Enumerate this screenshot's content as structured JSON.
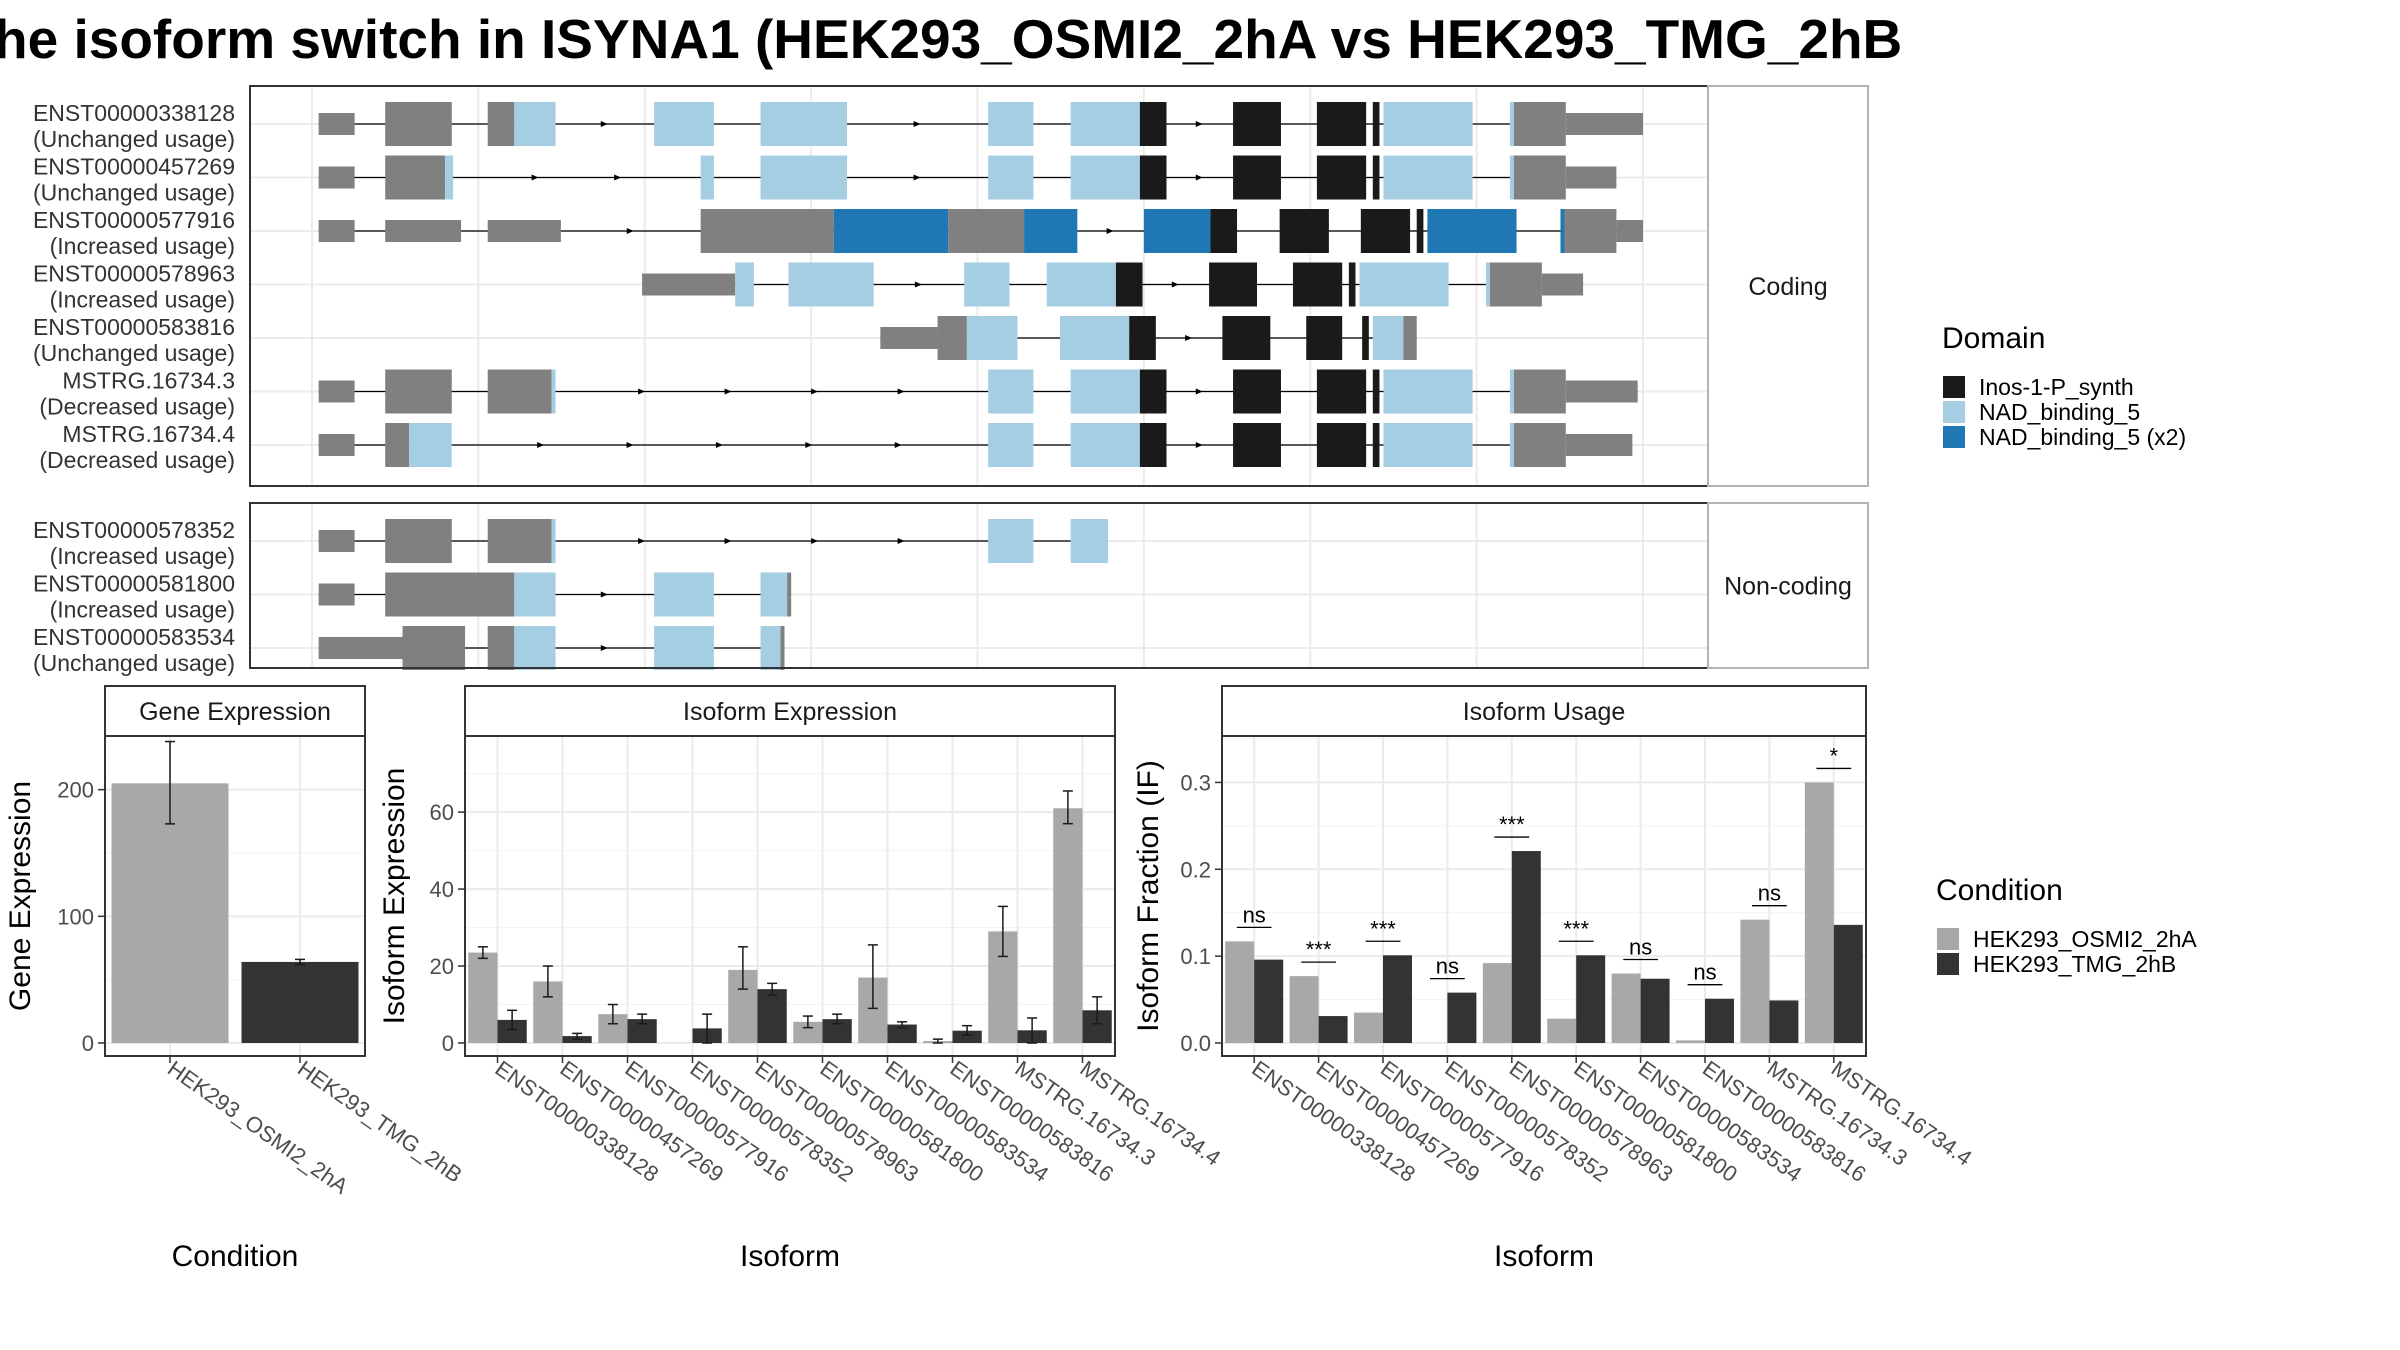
{
  "title": "he isoform switch in ISYNA1 (HEK293_OSMI2_2hA vs HEK293_TMG_2hB",
  "colors": {
    "exon": "#808080",
    "inos": "#1a1a1a",
    "nad": "#a6cee3",
    "nad2": "#1f78b4",
    "cond1": "#a8a8a8",
    "cond2": "#333333",
    "grid": "#ebebeb",
    "border": "#333333",
    "strip": "#ffffff"
  },
  "structure": {
    "sections": [
      {
        "label": "Coding",
        "transcripts": [
          {
            "id": "ENST00000338128",
            "usage": "(Unchanged usage)",
            "coding": true,
            "start": 0.005,
            "end": 1.0,
            "segs": [
              [
                0.005,
                0.032,
                "u"
              ],
              [
                0.055,
                0.105,
                "c"
              ],
              [
                0.132,
                0.152,
                "c"
              ],
              [
                0.152,
                0.183,
                "n"
              ],
              [
                0.257,
                0.302,
                "n"
              ],
              [
                0.337,
                0.402,
                "n"
              ],
              [
                0.508,
                0.542,
                "n"
              ],
              [
                0.57,
                0.622,
                "n"
              ],
              [
                0.622,
                0.642,
                "i"
              ],
              [
                0.692,
                0.728,
                "i"
              ],
              [
                0.755,
                0.792,
                "i"
              ],
              [
                0.797,
                0.802,
                "i"
              ],
              [
                0.805,
                0.872,
                "n"
              ],
              [
                0.9,
                0.903,
                "n"
              ],
              [
                0.903,
                0.942,
                "c"
              ],
              [
                0.942,
                1.0,
                "u"
              ]
            ]
          },
          {
            "id": "ENST00000457269",
            "usage": "(Unchanged usage)",
            "coding": true,
            "start": 0.005,
            "end": 0.915,
            "segs": [
              [
                0.005,
                0.032,
                "u"
              ],
              [
                0.055,
                0.1,
                "c"
              ],
              [
                0.1,
                0.106,
                "n"
              ],
              [
                0.292,
                0.302,
                "n"
              ],
              [
                0.337,
                0.402,
                "n"
              ],
              [
                0.508,
                0.542,
                "n"
              ],
              [
                0.57,
                0.622,
                "n"
              ],
              [
                0.622,
                0.642,
                "i"
              ],
              [
                0.692,
                0.728,
                "i"
              ],
              [
                0.755,
                0.792,
                "i"
              ],
              [
                0.797,
                0.802,
                "i"
              ],
              [
                0.805,
                0.872,
                "n"
              ],
              [
                0.9,
                0.903,
                "n"
              ],
              [
                0.903,
                0.942,
                "c"
              ],
              [
                0.942,
                0.98,
                "u"
              ]
            ]
          },
          {
            "id": "ENST00000577916",
            "usage": "(Increased usage)",
            "coding": true,
            "start": 0.005,
            "end": 0.905,
            "segs": [
              [
                0.005,
                0.032,
                "u"
              ],
              [
                0.055,
                0.112,
                "u"
              ],
              [
                0.132,
                0.187,
                "u"
              ],
              [
                0.292,
                0.392,
                "c"
              ],
              [
                0.392,
                0.478,
                "d"
              ],
              [
                0.478,
                0.535,
                "c"
              ],
              [
                0.535,
                0.575,
                "d"
              ],
              [
                0.625,
                0.675,
                "d"
              ],
              [
                0.675,
                0.695,
                "i"
              ],
              [
                0.727,
                0.764,
                "i"
              ],
              [
                0.788,
                0.825,
                "i"
              ],
              [
                0.83,
                0.835,
                "i"
              ],
              [
                0.838,
                0.905,
                "d"
              ],
              [
                0.938,
                0.941,
                "d"
              ],
              [
                0.941,
                0.98,
                "c"
              ],
              [
                0.98,
                1.0,
                "u"
              ]
            ]
          },
          {
            "id": "ENST00000578963",
            "usage": "(Increased usage)",
            "coding": true,
            "start": 0.248,
            "end": 0.92,
            "segs": [
              [
                0.248,
                0.318,
                "u"
              ],
              [
                0.318,
                0.332,
                "n"
              ],
              [
                0.358,
                0.422,
                "n"
              ],
              [
                0.49,
                0.524,
                "n"
              ],
              [
                0.552,
                0.604,
                "n"
              ],
              [
                0.604,
                0.624,
                "i"
              ],
              [
                0.674,
                0.71,
                "i"
              ],
              [
                0.737,
                0.774,
                "i"
              ],
              [
                0.779,
                0.784,
                "i"
              ],
              [
                0.787,
                0.854,
                "n"
              ],
              [
                0.882,
                0.885,
                "n"
              ],
              [
                0.885,
                0.924,
                "c"
              ],
              [
                0.924,
                0.955,
                "u"
              ]
            ]
          },
          {
            "id": "ENST00000583816",
            "usage": "(Unchanged usage)",
            "coding": true,
            "start": 0.427,
            "end": 0.815,
            "segs": [
              [
                0.427,
                0.47,
                "u"
              ],
              [
                0.47,
                0.492,
                "c"
              ],
              [
                0.492,
                0.53,
                "n"
              ],
              [
                0.562,
                0.614,
                "n"
              ],
              [
                0.614,
                0.634,
                "i"
              ],
              [
                0.684,
                0.72,
                "i"
              ],
              [
                0.747,
                0.774,
                "i"
              ],
              [
                0.789,
                0.794,
                "i"
              ],
              [
                0.797,
                0.82,
                "n"
              ],
              [
                0.82,
                0.83,
                "c"
              ]
            ]
          },
          {
            "id": "MSTRG.16734.3",
            "usage": "(Decreased usage)",
            "coding": true,
            "start": 0.005,
            "end": 0.955,
            "segs": [
              [
                0.005,
                0.032,
                "u"
              ],
              [
                0.055,
                0.105,
                "c"
              ],
              [
                0.132,
                0.18,
                "c"
              ],
              [
                0.18,
                0.183,
                "n"
              ],
              [
                0.508,
                0.542,
                "n"
              ],
              [
                0.57,
                0.622,
                "n"
              ],
              [
                0.622,
                0.642,
                "i"
              ],
              [
                0.692,
                0.728,
                "i"
              ],
              [
                0.755,
                0.792,
                "i"
              ],
              [
                0.797,
                0.802,
                "i"
              ],
              [
                0.805,
                0.872,
                "n"
              ],
              [
                0.9,
                0.903,
                "n"
              ],
              [
                0.903,
                0.942,
                "c"
              ],
              [
                0.942,
                0.996,
                "u"
              ]
            ]
          },
          {
            "id": "MSTRG.16734.4",
            "usage": "(Decreased usage)",
            "coding": true,
            "start": 0.005,
            "end": 0.945,
            "segs": [
              [
                0.005,
                0.032,
                "u"
              ],
              [
                0.055,
                0.073,
                "c"
              ],
              [
                0.073,
                0.105,
                "n"
              ],
              [
                0.508,
                0.542,
                "n"
              ],
              [
                0.57,
                0.622,
                "n"
              ],
              [
                0.622,
                0.642,
                "i"
              ],
              [
                0.692,
                0.728,
                "i"
              ],
              [
                0.755,
                0.792,
                "i"
              ],
              [
                0.797,
                0.802,
                "i"
              ],
              [
                0.805,
                0.872,
                "n"
              ],
              [
                0.9,
                0.903,
                "n"
              ],
              [
                0.903,
                0.942,
                "c"
              ],
              [
                0.942,
                0.992,
                "u"
              ]
            ]
          }
        ]
      },
      {
        "label": "Non-coding",
        "transcripts": [
          {
            "id": "ENST00000578352",
            "usage": "(Increased usage)",
            "coding": false,
            "start": 0.005,
            "end": 0.57,
            "segs": [
              [
                0.005,
                0.032,
                "u"
              ],
              [
                0.055,
                0.105,
                "c"
              ],
              [
                0.132,
                0.18,
                "c"
              ],
              [
                0.18,
                0.183,
                "n"
              ],
              [
                0.508,
                0.542,
                "n"
              ],
              [
                0.57,
                0.598,
                "n"
              ]
            ]
          },
          {
            "id": "ENST00000581800",
            "usage": "(Increased usage)",
            "coding": false,
            "start": 0.005,
            "end": 0.38,
            "segs": [
              [
                0.005,
                0.032,
                "u"
              ],
              [
                0.055,
                0.152,
                "c"
              ],
              [
                0.152,
                0.183,
                "n"
              ],
              [
                0.257,
                0.302,
                "n"
              ],
              [
                0.337,
                0.357,
                "n"
              ],
              [
                0.357,
                0.36,
                "c"
              ]
            ]
          },
          {
            "id": "ENST00000583534",
            "usage": "(Unchanged usage)",
            "coding": false,
            "start": 0.005,
            "end": 0.38,
            "segs": [
              [
                0.005,
                0.068,
                "u"
              ],
              [
                0.068,
                0.115,
                "c"
              ],
              [
                0.132,
                0.152,
                "c"
              ],
              [
                0.152,
                0.183,
                "n"
              ],
              [
                0.257,
                0.302,
                "n"
              ],
              [
                0.337,
                0.352,
                "n"
              ],
              [
                0.352,
                0.355,
                "c"
              ]
            ]
          }
        ]
      }
    ]
  },
  "domain_legend": {
    "title": "Domain",
    "items": [
      {
        "label": "Inos-1-P_synth",
        "color": "#1a1a1a"
      },
      {
        "label": "NAD_binding_5",
        "color": "#a6cee3"
      },
      {
        "label": "NAD_binding_5 (x2)",
        "color": "#1f78b4"
      }
    ]
  },
  "condition_legend": {
    "title": "Condition",
    "items": [
      {
        "label": "HEK293_OSMI2_2hA",
        "color": "#a8a8a8"
      },
      {
        "label": "HEK293_TMG_2hB",
        "color": "#333333"
      }
    ]
  },
  "chart_data": [
    {
      "type": "bar",
      "title": "Gene Expression",
      "xlabel": "Condition",
      "ylabel": "Gene Expression",
      "categories": [
        "HEK293_OSMI2_2hA",
        "HEK293_TMG_2hB"
      ],
      "series": [
        {
          "name": "Gene Expression",
          "values": [
            205,
            64
          ]
        }
      ],
      "errors": [
        [
          173,
          238
        ],
        [
          62,
          66
        ]
      ],
      "ylim": [
        0,
        240
      ],
      "yticks": [
        0,
        100,
        200
      ],
      "grid": true
    },
    {
      "type": "bar",
      "title": "Isoform Expression",
      "xlabel": "Isoform",
      "ylabel": "Isoform Expression",
      "categories": [
        "ENST00000338128",
        "ENST00000457269",
        "ENST00000577916",
        "ENST00000578352",
        "ENST00000578963",
        "ENST00000581800",
        "ENST00000583534",
        "ENST00000583816",
        "MSTRG.16734.3",
        "MSTRG.16734.4"
      ],
      "series": [
        {
          "name": "HEK293_OSMI2_2hA",
          "values": [
            23.5,
            16,
            7.5,
            0,
            19,
            5.5,
            17,
            0.5,
            29,
            61
          ]
        },
        {
          "name": "HEK293_TMG_2hB",
          "values": [
            6,
            1.8,
            6.2,
            3.8,
            14,
            6.2,
            4.8,
            3.2,
            3.3,
            8.5
          ]
        }
      ],
      "errors": {
        "HEK293_OSMI2_2hA": [
          [
            22,
            25
          ],
          [
            12,
            20
          ],
          [
            5,
            10
          ],
          [
            0,
            0
          ],
          [
            14,
            25
          ],
          [
            4,
            7
          ],
          [
            9,
            25.5
          ],
          [
            0,
            1
          ],
          [
            22.5,
            35.5
          ],
          [
            57,
            65.5
          ]
        ],
        "HEK293_TMG_2hB": [
          [
            3.5,
            8.5
          ],
          [
            1,
            2.5
          ],
          [
            5,
            7.5
          ],
          [
            0,
            7.5
          ],
          [
            12.5,
            15.5
          ],
          [
            5,
            7.5
          ],
          [
            4,
            5.5
          ],
          [
            2,
            4.5
          ],
          [
            0,
            6.5
          ],
          [
            5,
            12
          ]
        ]
      },
      "ylim": [
        0,
        79
      ],
      "yticks": [
        0,
        20,
        40,
        60
      ],
      "grid": true
    },
    {
      "type": "bar",
      "title": "Isoform Usage",
      "xlabel": "Isoform",
      "ylabel": "Isoform Fraction (IF)",
      "categories": [
        "ENST00000338128",
        "ENST00000457269",
        "ENST00000577916",
        "ENST00000578352",
        "ENST00000578963",
        "ENST00000581800",
        "ENST00000583534",
        "ENST00000583816",
        "MSTRG.16734.3",
        "MSTRG.16734.4"
      ],
      "series": [
        {
          "name": "HEK293_OSMI2_2hA",
          "values": [
            0.117,
            0.077,
            0.035,
            0.0,
            0.092,
            0.028,
            0.08,
            0.003,
            0.142,
            0.3
          ]
        },
        {
          "name": "HEK293_TMG_2hB",
          "values": [
            0.096,
            0.031,
            0.101,
            0.058,
            0.221,
            0.101,
            0.074,
            0.051,
            0.049,
            0.136
          ]
        }
      ],
      "significance": [
        "ns",
        "***",
        "***",
        "ns",
        "***",
        "***",
        "ns",
        "ns",
        "ns",
        "*"
      ],
      "ylim": [
        0,
        0.35
      ],
      "yticks": [
        0.0,
        0.1,
        0.2,
        0.3
      ],
      "yticklabels": [
        "0.0",
        "0.1",
        "0.2",
        "0.3"
      ],
      "grid": true
    }
  ]
}
